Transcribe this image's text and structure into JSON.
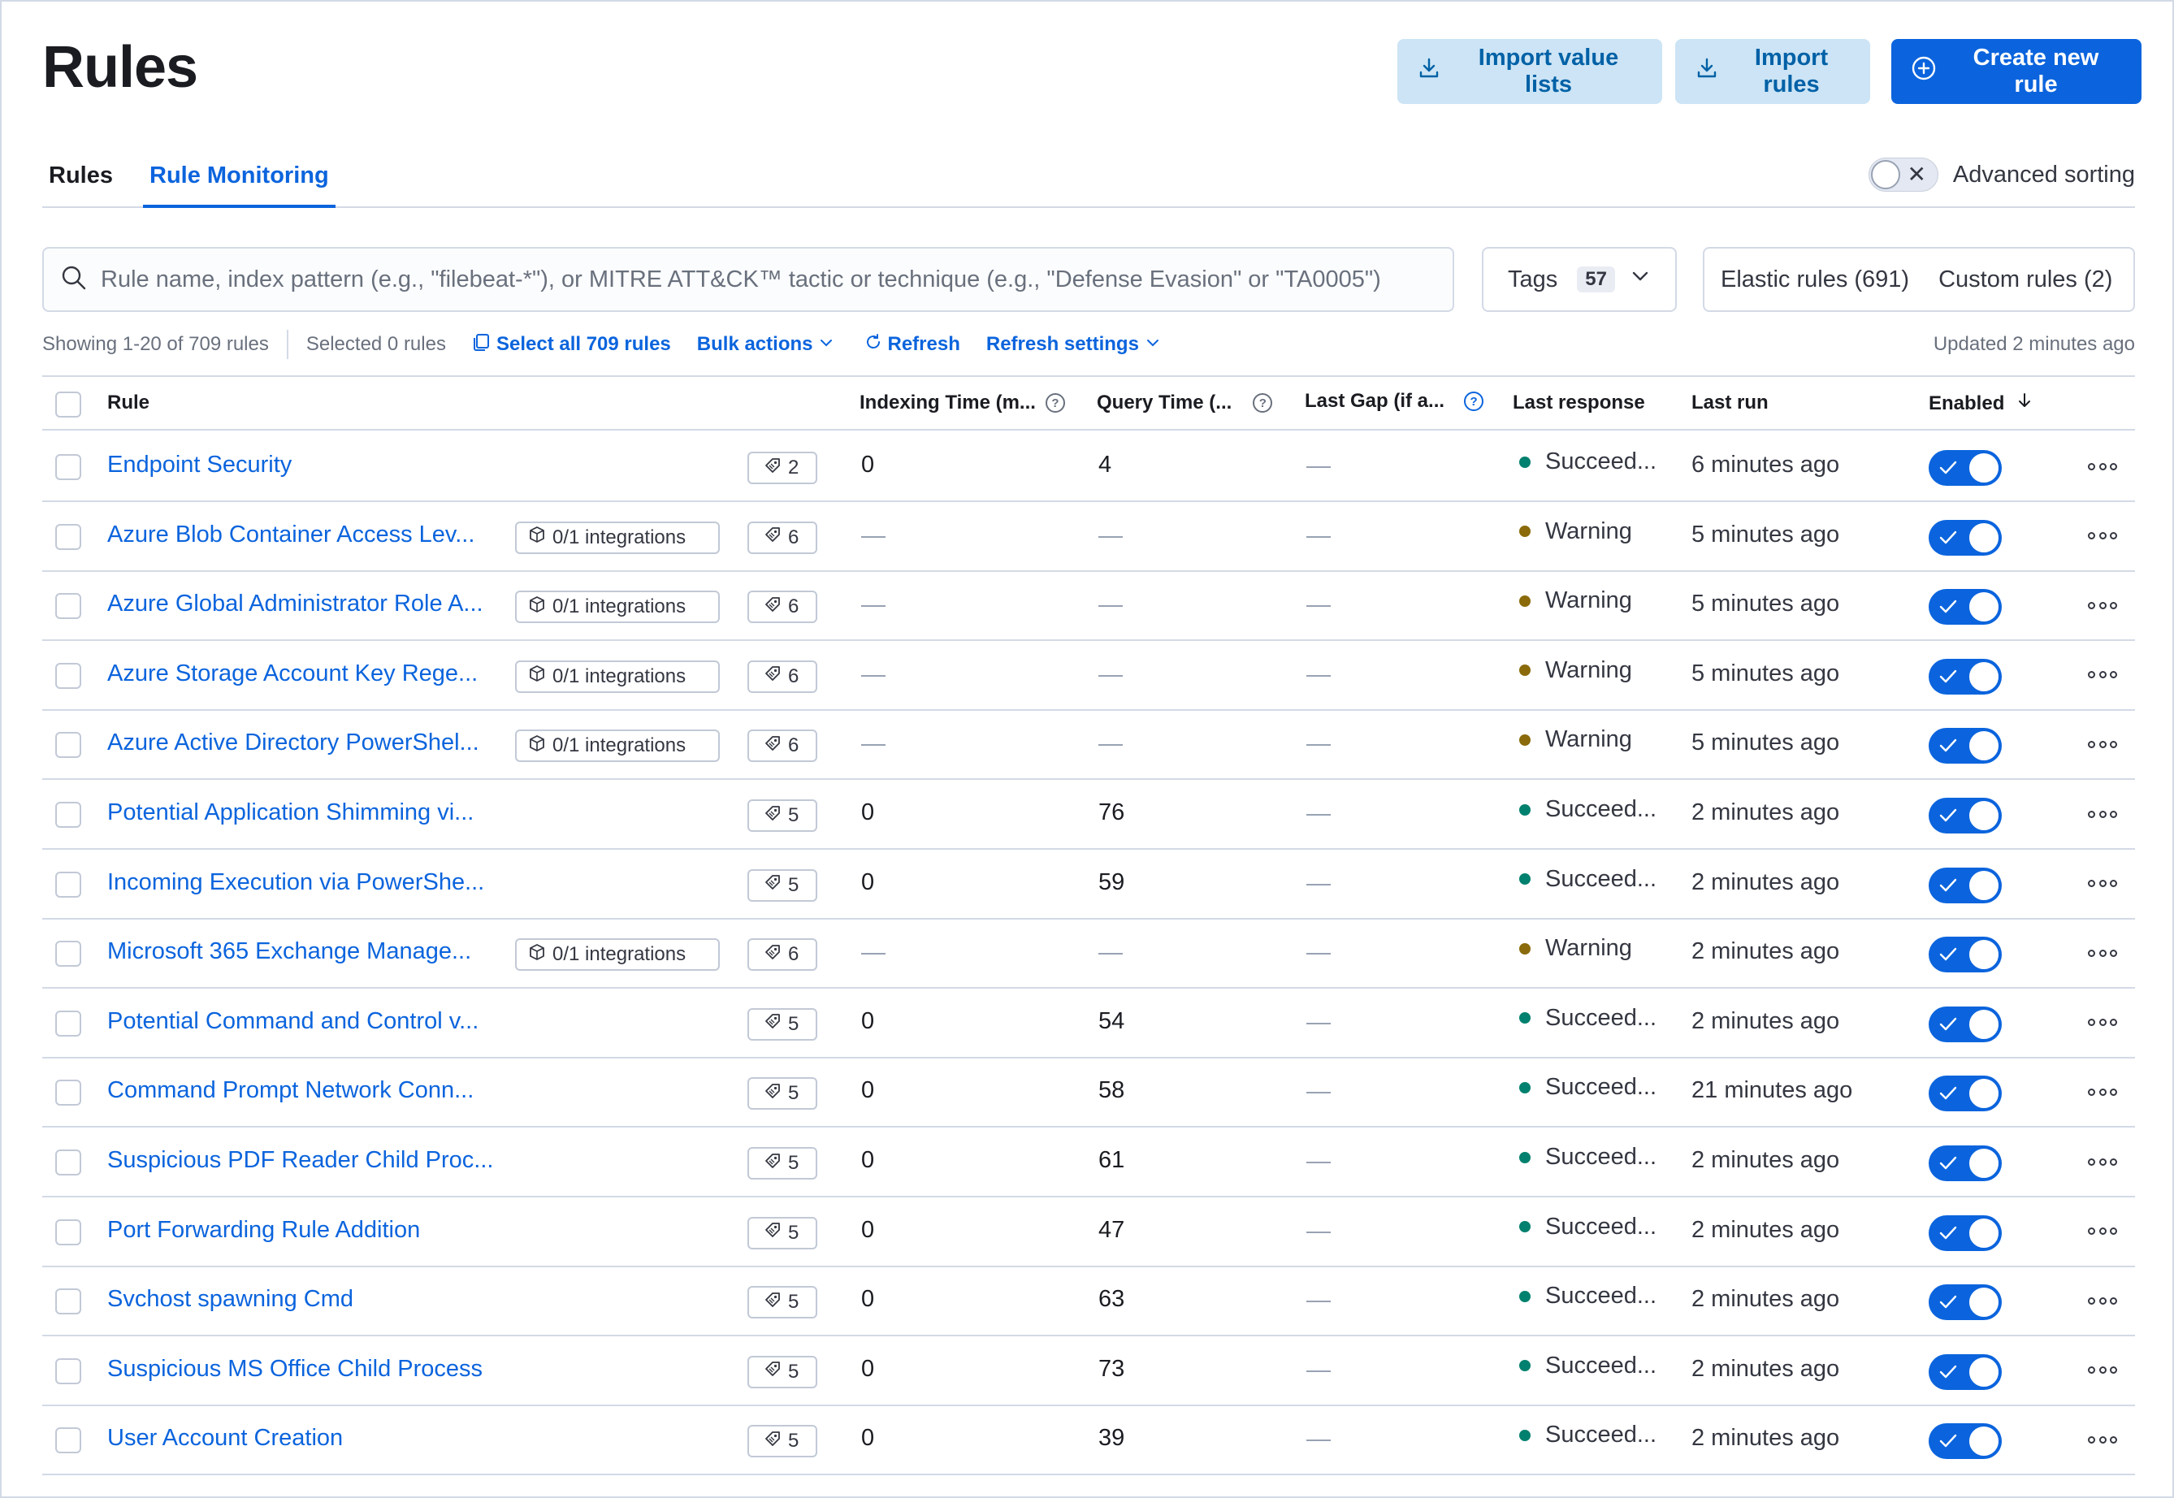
{
  "page": {
    "title": "Rules"
  },
  "header_buttons": {
    "import_value_lists": "Import value lists",
    "import_rules": "Import rules",
    "create_new_rule": "Create new rule"
  },
  "tabs": [
    {
      "label": "Rules",
      "active": false
    },
    {
      "label": "Rule Monitoring",
      "active": true
    }
  ],
  "advanced_sorting": {
    "label": "Advanced sorting",
    "enabled": false
  },
  "search": {
    "placeholder": "Rule name, index pattern (e.g., \"filebeat-*\"), or MITRE ATT&CK™ tactic or technique (e.g., \"Defense Evasion\" or \"TA0005\")",
    "value": ""
  },
  "tags_filter": {
    "label": "Tags",
    "count": "57"
  },
  "rule_source_filters": {
    "elastic": "Elastic rules (691)",
    "custom": "Custom rules (2)"
  },
  "utility_bar": {
    "showing": "Showing 1-20 of 709 rules",
    "selected": "Selected 0 rules",
    "select_all": "Select all 709 rules",
    "bulk_actions": "Bulk actions",
    "refresh": "Refresh",
    "refresh_settings": "Refresh settings",
    "updated": "Updated 2 minutes ago"
  },
  "columns": {
    "rule": "Rule",
    "indexing_time": "Indexing Time (m...",
    "query_time": "Query Time (...",
    "last_gap": "Last Gap (if a...",
    "last_response": "Last response",
    "last_run": "Last run",
    "enabled": "Enabled"
  },
  "colors": {
    "primary": "#0b64dd",
    "success": "#00806e",
    "warning": "#8a6a0a"
  },
  "rows": [
    {
      "name": "Endpoint Security",
      "integrations": "",
      "tags": "2",
      "indexing": "0",
      "query": "4",
      "gap": "—",
      "response": "Succeed...",
      "status": "success",
      "last_run": "6 minutes ago",
      "enabled": true
    },
    {
      "name": "Azure Blob Container Access Lev...",
      "integrations": "0/1 integrations",
      "tags": "6",
      "indexing": "—",
      "query": "—",
      "gap": "—",
      "response": "Warning",
      "status": "warning",
      "last_run": "5 minutes ago",
      "enabled": true
    },
    {
      "name": "Azure Global Administrator Role A...",
      "integrations": "0/1 integrations",
      "tags": "6",
      "indexing": "—",
      "query": "—",
      "gap": "—",
      "response": "Warning",
      "status": "warning",
      "last_run": "5 minutes ago",
      "enabled": true
    },
    {
      "name": "Azure Storage Account Key Rege...",
      "integrations": "0/1 integrations",
      "tags": "6",
      "indexing": "—",
      "query": "—",
      "gap": "—",
      "response": "Warning",
      "status": "warning",
      "last_run": "5 minutes ago",
      "enabled": true
    },
    {
      "name": "Azure Active Directory PowerShel...",
      "integrations": "0/1 integrations",
      "tags": "6",
      "indexing": "—",
      "query": "—",
      "gap": "—",
      "response": "Warning",
      "status": "warning",
      "last_run": "5 minutes ago",
      "enabled": true
    },
    {
      "name": "Potential Application Shimming vi...",
      "integrations": "",
      "tags": "5",
      "indexing": "0",
      "query": "76",
      "gap": "—",
      "response": "Succeed...",
      "status": "success",
      "last_run": "2 minutes ago",
      "enabled": true
    },
    {
      "name": "Incoming Execution via PowerShe...",
      "integrations": "",
      "tags": "5",
      "indexing": "0",
      "query": "59",
      "gap": "—",
      "response": "Succeed...",
      "status": "success",
      "last_run": "2 minutes ago",
      "enabled": true
    },
    {
      "name": "Microsoft 365 Exchange Manage...",
      "integrations": "0/1 integrations",
      "tags": "6",
      "indexing": "—",
      "query": "—",
      "gap": "—",
      "response": "Warning",
      "status": "warning",
      "last_run": "2 minutes ago",
      "enabled": true
    },
    {
      "name": "Potential Command and Control v...",
      "integrations": "",
      "tags": "5",
      "indexing": "0",
      "query": "54",
      "gap": "—",
      "response": "Succeed...",
      "status": "success",
      "last_run": "2 minutes ago",
      "enabled": true
    },
    {
      "name": "Command Prompt Network Conn...",
      "integrations": "",
      "tags": "5",
      "indexing": "0",
      "query": "58",
      "gap": "—",
      "response": "Succeed...",
      "status": "success",
      "last_run": "21 minutes ago",
      "enabled": true
    },
    {
      "name": "Suspicious PDF Reader Child Proc...",
      "integrations": "",
      "tags": "5",
      "indexing": "0",
      "query": "61",
      "gap": "—",
      "response": "Succeed...",
      "status": "success",
      "last_run": "2 minutes ago",
      "enabled": true
    },
    {
      "name": "Port Forwarding Rule Addition",
      "integrations": "",
      "tags": "5",
      "indexing": "0",
      "query": "47",
      "gap": "—",
      "response": "Succeed...",
      "status": "success",
      "last_run": "2 minutes ago",
      "enabled": true
    },
    {
      "name": "Svchost spawning Cmd",
      "integrations": "",
      "tags": "5",
      "indexing": "0",
      "query": "63",
      "gap": "—",
      "response": "Succeed...",
      "status": "success",
      "last_run": "2 minutes ago",
      "enabled": true
    },
    {
      "name": "Suspicious MS Office Child Process",
      "integrations": "",
      "tags": "5",
      "indexing": "0",
      "query": "73",
      "gap": "—",
      "response": "Succeed...",
      "status": "success",
      "last_run": "2 minutes ago",
      "enabled": true
    },
    {
      "name": "User Account Creation",
      "integrations": "",
      "tags": "5",
      "indexing": "0",
      "query": "39",
      "gap": "—",
      "response": "Succeed...",
      "status": "success",
      "last_run": "2 minutes ago",
      "enabled": true
    }
  ]
}
